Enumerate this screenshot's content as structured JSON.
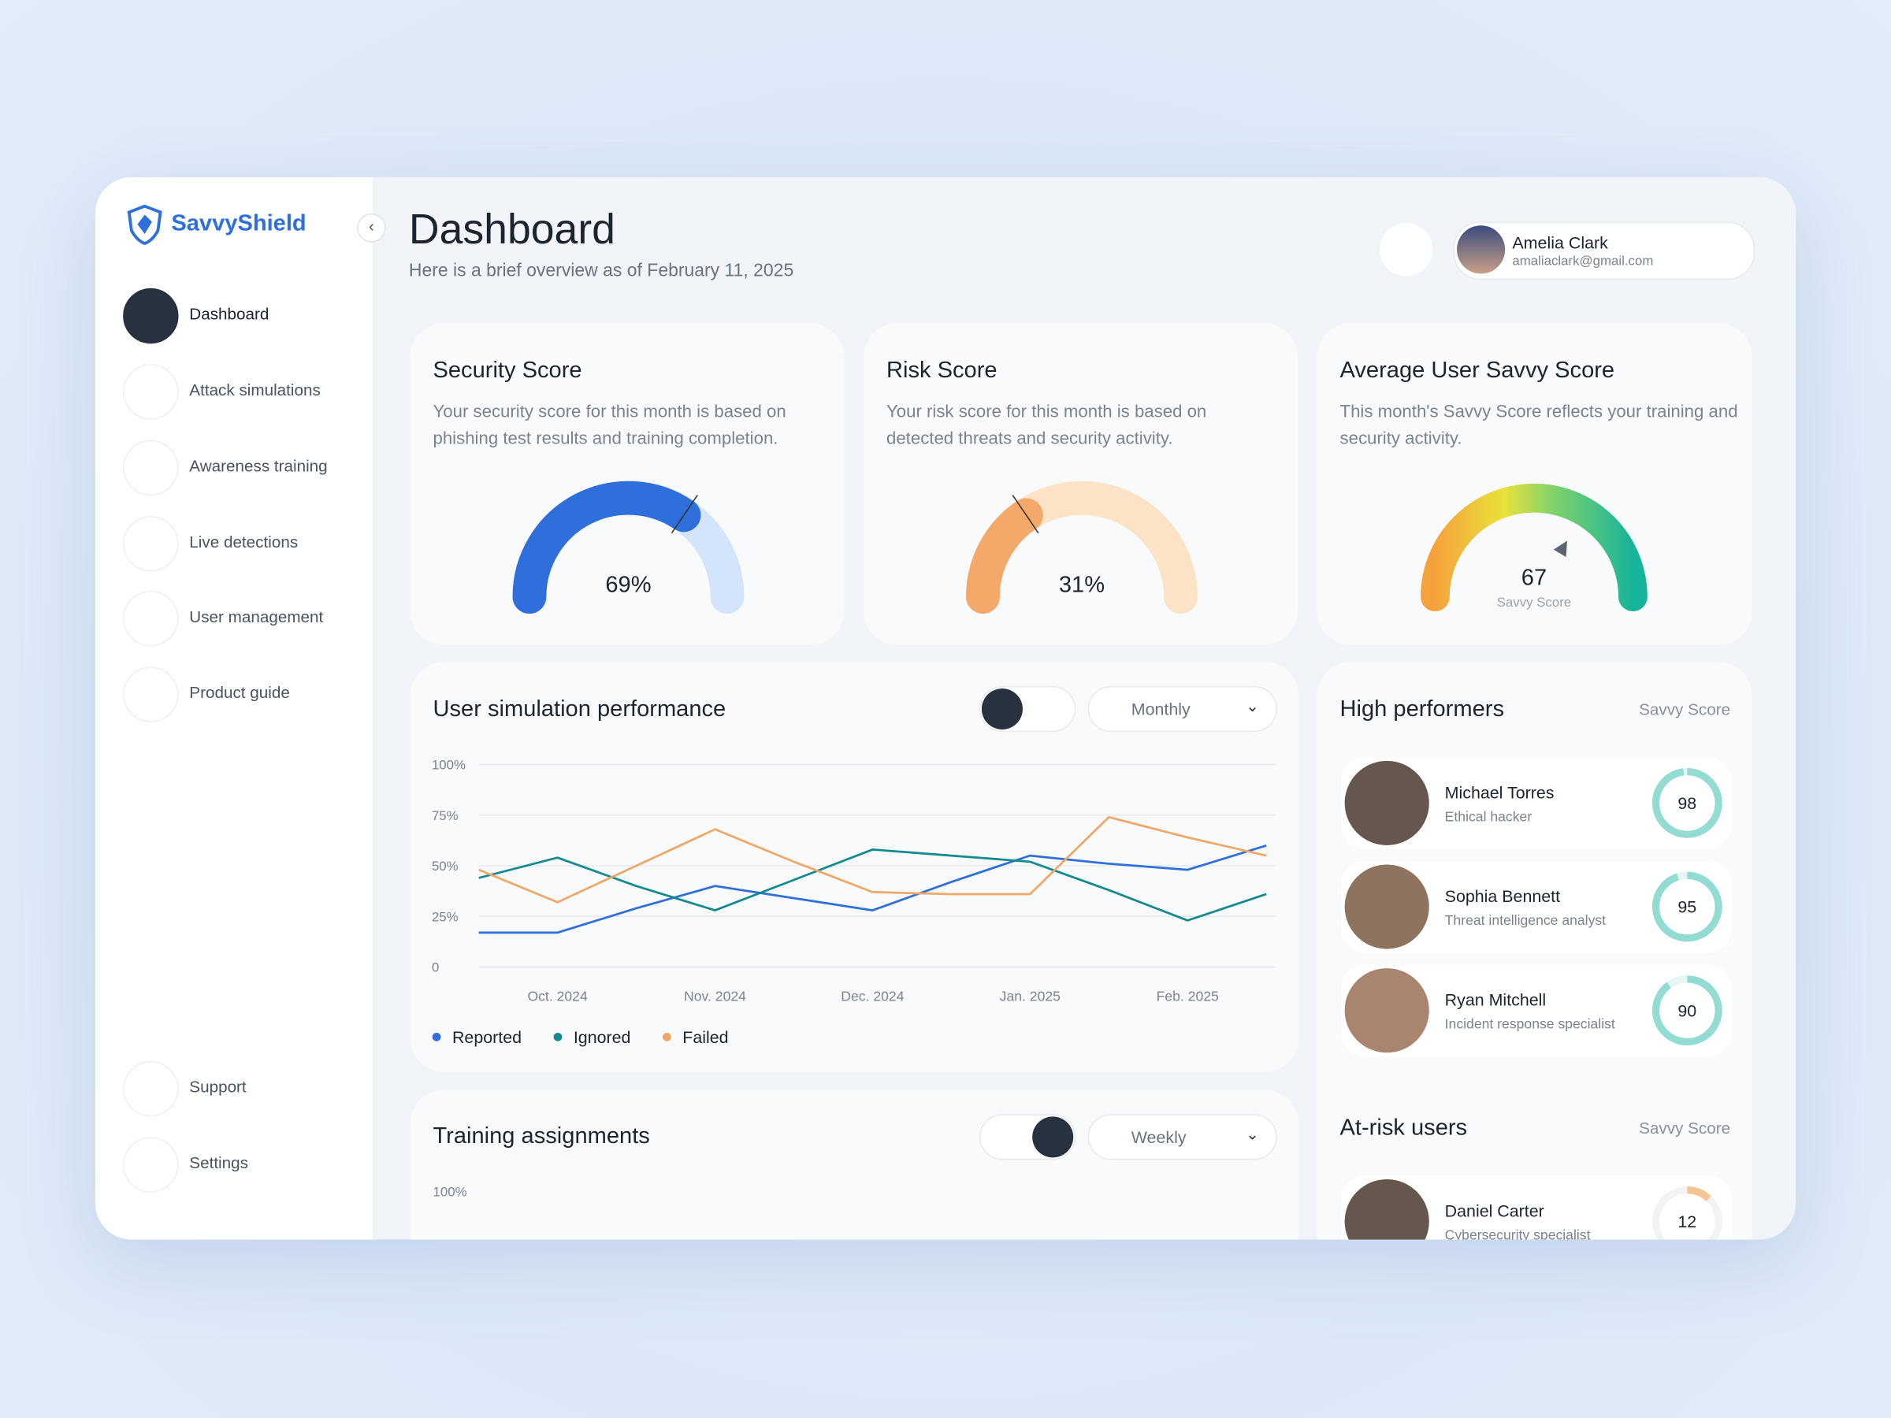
{
  "brand": "SavvyShield",
  "nav": [
    "Dashboard",
    "Attack simulations",
    "Awareness training",
    "Live detections",
    "User management",
    "Product guide"
  ],
  "nav_footer": [
    "Support",
    "Settings"
  ],
  "header": {
    "title": "Dashboard",
    "subtitle": "Here is a brief overview as of February 11, 2025"
  },
  "user": {
    "name": "Amelia Clark",
    "email": "amaliaclark@gmail.com"
  },
  "gauge_range": [
    0,
    100
  ],
  "score_cards": [
    {
      "title": "Security Score",
      "description": "Your security score for this month is based on phishing test results and training completion.",
      "value": 69,
      "value_label": "69%"
    },
    {
      "title": "Risk Score",
      "description": "Your risk score for this month is based on detected threats and security activity.",
      "value": 31,
      "value_label": "31%"
    },
    {
      "title": "Average User Savvy Score",
      "description": "This month's Savvy Score reflects your training and security activity.",
      "value": 67,
      "caption": "Savvy Score"
    }
  ],
  "chart_data": {
    "type": "line",
    "title": "User simulation performance",
    "period": "Monthly",
    "categories": [
      null,
      "Oct. 2024",
      null,
      "Nov. 2024",
      null,
      "Dec. 2024",
      null,
      "Jan. 2025",
      null,
      "Feb. 2025",
      null
    ],
    "series": [
      {
        "name": "Reported",
        "color": "#2f6fdc",
        "values": [
          17,
          17,
          29,
          40,
          34,
          28,
          42,
          55,
          51,
          48,
          60
        ]
      },
      {
        "name": "Ignored",
        "color": "#138a8f",
        "values": [
          44,
          54,
          40,
          28,
          43,
          58,
          55,
          52,
          38,
          23,
          36
        ]
      },
      {
        "name": "Failed",
        "color": "#f0a868",
        "values": [
          48,
          32,
          50,
          68,
          52,
          37,
          36,
          36,
          74,
          64,
          55
        ]
      }
    ],
    "ylim": [
      0,
      100
    ],
    "yticks": [
      0,
      {
        "value": 25,
        "label": "25%"
      },
      {
        "value": 50,
        "label": "50%"
      },
      {
        "value": 75,
        "label": "75%"
      },
      {
        "value": 100,
        "label": "100%"
      }
    ],
    "grid": true
  },
  "high_performers": {
    "title": "High performers",
    "column": "Savvy Score",
    "people": [
      {
        "name": "Michael Torres",
        "role": "Ethical hacker",
        "score": 98
      },
      {
        "name": "Sophia Bennett",
        "role": "Threat intelligence analyst",
        "score": 95
      },
      {
        "name": "Ryan Mitchell",
        "role": "Incident response specialist",
        "score": 90
      }
    ]
  },
  "at_risk": {
    "title": "At-risk users",
    "column": "Savvy Score",
    "people": [
      {
        "name": "Daniel Carter",
        "role": "Cybersecurity specialist",
        "score": 12
      }
    ]
  },
  "training": {
    "title": "Training assignments",
    "period": "Weekly",
    "yticks": [
      {
        "value": 100,
        "label": "100%"
      }
    ]
  }
}
